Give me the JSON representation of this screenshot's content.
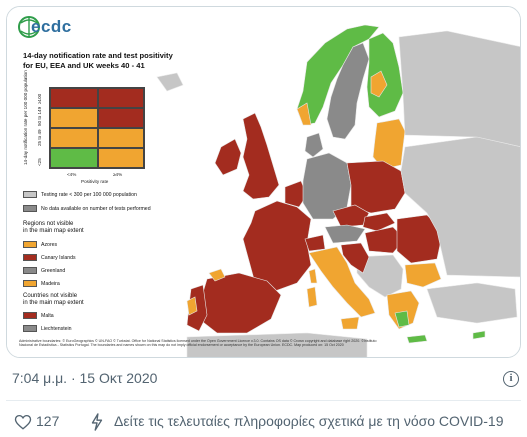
{
  "colors": {
    "red": "#a32c1f",
    "orange": "#f0a531",
    "green": "#5fbb46",
    "grey": "#8a8a8a",
    "light_grey": "#c6c6c6",
    "sea": "#ffffff",
    "border": "#e8e8e8"
  },
  "map": {
    "logo_text": "ecdc",
    "title_line1": "14-day notification rate and test positivity",
    "title_line2": "for EU, EEA and UK weeks 40 - 41",
    "legend": {
      "y_axis_label": "14-day notification rate per 100 000 population",
      "y_ticks": [
        "≥100",
        "50 to 149",
        "25 to 49",
        "<25"
      ],
      "x_axis_label": "Positivity rate",
      "x_ticks": [
        "<4%",
        "≥4%"
      ],
      "testing_rate": "Testing rate < 300 per 100 000 population",
      "no_data": "No data available on number of tests performed",
      "regions_head_1": "Regions not visible",
      "regions_head_2": "in the main map extent",
      "regions": [
        {
          "name": "Azores",
          "color": "orange"
        },
        {
          "name": "Canary Islands",
          "color": "red"
        },
        {
          "name": "Greenland",
          "color": "grey"
        },
        {
          "name": "Madeira",
          "color": "orange"
        }
      ],
      "countries_head_1": "Countries not visible",
      "countries_head_2": "in the main map extent",
      "countries": [
        {
          "name": "Malta",
          "color": "red"
        },
        {
          "name": "Liechtenstein",
          "color": "grey"
        }
      ]
    },
    "footnote_1": "Administrative boundaries: © EuroGeographics © UN-FAO © Turkstat. Office for National Statistics licensed under the Open Government Licence v.3.0. Contains OS data © Crown copyright and database right 2020. ©Instituto",
    "footnote_2": "Nacional de Estadística - Statistics Portugal. The boundaries and names shown on this map do not imply official endorsement or acceptance by the European Union. ECDC. Map produced on: 15 Oct 2020"
  },
  "tweet": {
    "timestamp": "7:04 μ.μ. · 15 Οκτ 2020",
    "like_count": "127",
    "news_text": "Δείτε τις τελευταίες πληροφορίες σχετικά με τη νόσο COVID-19"
  }
}
